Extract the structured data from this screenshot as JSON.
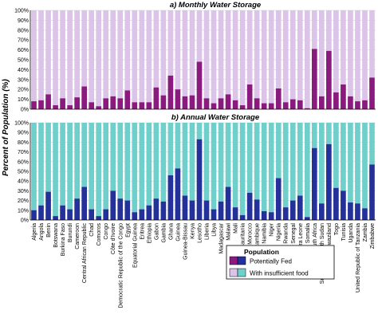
{
  "figure": {
    "ylabel": "Percent of Population (%)",
    "legend_title": "Population",
    "legend_items": [
      "Potentially Fed",
      "With insufficient food"
    ],
    "colors": {
      "monthly_fed": "#8b1a7e",
      "monthly_insufficient": "#dcc3e8",
      "annual_fed": "#24319a",
      "annual_insufficient": "#6fcfcb"
    }
  },
  "chart_data": [
    {
      "type": "bar",
      "stacked": true,
      "title": "a) Monthly Water Storage",
      "categories": [
        "Algeria",
        "Angola",
        "Benin",
        "Botswana",
        "Burkina Faso",
        "Burundi",
        "Cameroon",
        "Central African Republic",
        "Chad",
        "Comoros",
        "Congo",
        "Côte d'Ivoire",
        "Democratic Republic of the Congo",
        "Egypt",
        "Equatorial Guinea",
        "Eritrea",
        "Ethiopia",
        "Gabon",
        "Gambia",
        "Ghana",
        "Guinea",
        "Guinea-Bissau",
        "Kenya",
        "Lesotho",
        "Liberia",
        "Libya",
        "Madagascar",
        "Malawi",
        "Mali",
        "Mauritania",
        "Morocco",
        "Mozambique",
        "Namibia",
        "Niger",
        "Nigeria",
        "Rwanda",
        "Senegal",
        "Sierra Leone",
        "Somalia",
        "South Africa",
        "Sudan and South Sudan",
        "Swaziland",
        "Togo",
        "Tunisia",
        "Uganda",
        "United Republic of Tanzania",
        "Zambia",
        "Zimbabwe"
      ],
      "series": [
        {
          "name": "Potentially Fed",
          "values": [
            8,
            9,
            15,
            4,
            11,
            4,
            12,
            23,
            7,
            3,
            11,
            13,
            11,
            19,
            7,
            7,
            7,
            22,
            14,
            34,
            20,
            13,
            14,
            48,
            11,
            6,
            11,
            15,
            9,
            4,
            25,
            11,
            6,
            6,
            21,
            7,
            10,
            9,
            1,
            61,
            13,
            59,
            17,
            25,
            13,
            8,
            9,
            32
          ]
        },
        {
          "name": "With insufficient food",
          "values": [
            92,
            91,
            85,
            96,
            89,
            96,
            88,
            77,
            93,
            97,
            89,
            87,
            89,
            81,
            93,
            93,
            93,
            78,
            86,
            66,
            80,
            87,
            86,
            52,
            89,
            94,
            89,
            85,
            91,
            96,
            75,
            89,
            94,
            94,
            79,
            93,
            90,
            91,
            99,
            39,
            87,
            41,
            83,
            75,
            87,
            92,
            91,
            68
          ]
        }
      ],
      "ylim": [
        0,
        100
      ],
      "yticks": [
        "0%",
        "10%",
        "20%",
        "30%",
        "40%",
        "50%",
        "60%",
        "70%",
        "80%",
        "90%",
        "100%"
      ]
    },
    {
      "type": "bar",
      "stacked": true,
      "title": "b) Annual Water Storage",
      "categories": [
        "Algeria",
        "Angola",
        "Benin",
        "Botswana",
        "Burkina Faso",
        "Burundi",
        "Cameroon",
        "Central African Republic",
        "Chad",
        "Comoros",
        "Congo",
        "Côte d'Ivoire",
        "Democratic Republic of the Congo",
        "Egypt",
        "Equatorial Guinea",
        "Eritrea",
        "Ethiopia",
        "Gabon",
        "Gambia",
        "Ghana",
        "Guinea",
        "Guinea-Bissau",
        "Kenya",
        "Lesotho",
        "Liberia",
        "Libya",
        "Madagascar",
        "Malawi",
        "Mali",
        "Mauritania",
        "Morocco",
        "Mozambique",
        "Namibia",
        "Niger",
        "Nigeria",
        "Rwanda",
        "Senegal",
        "Sierra Leone",
        "Somalia",
        "South Africa",
        "Sudan and South Sudan",
        "Swaziland",
        "Togo",
        "Tunisia",
        "Uganda",
        "United Republic of Tanzania",
        "Zambia",
        "Zimbabwe"
      ],
      "series": [
        {
          "name": "Potentially Fed",
          "values": [
            10,
            15,
            29,
            4,
            15,
            11,
            22,
            34,
            11,
            4,
            11,
            30,
            22,
            20,
            8,
            11,
            15,
            22,
            19,
            46,
            53,
            25,
            20,
            83,
            20,
            11,
            19,
            34,
            13,
            5,
            28,
            21,
            9,
            8,
            43,
            13,
            20,
            25,
            3,
            74,
            17,
            78,
            33,
            30,
            18,
            17,
            12,
            57
          ]
        },
        {
          "name": "With insufficient food",
          "values": [
            90,
            85,
            71,
            96,
            85,
            89,
            78,
            66,
            89,
            96,
            89,
            70,
            78,
            80,
            92,
            89,
            85,
            78,
            81,
            54,
            47,
            75,
            80,
            17,
            80,
            89,
            81,
            66,
            87,
            95,
            72,
            79,
            91,
            92,
            57,
            87,
            80,
            75,
            97,
            26,
            83,
            22,
            67,
            70,
            82,
            83,
            88,
            43
          ]
        }
      ],
      "ylim": [
        0,
        100
      ],
      "yticks": [
        "0%",
        "10%",
        "20%",
        "30%",
        "40%",
        "50%",
        "60%",
        "70%",
        "80%",
        "90%",
        "100%"
      ]
    }
  ]
}
